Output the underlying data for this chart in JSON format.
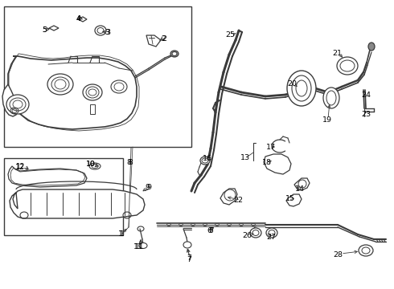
{
  "bg_color": "#ffffff",
  "line_color": "#3a3a3a",
  "fig_width": 4.9,
  "fig_height": 3.6,
  "dpi": 100,
  "box1": [
    5,
    8,
    238,
    8,
    238,
    183,
    5,
    183
  ],
  "box2": [
    5,
    197,
    153,
    197,
    153,
    293,
    5,
    293
  ],
  "labels": {
    "1": [
      148,
      292,
      "left"
    ],
    "2": [
      196,
      48,
      "left"
    ],
    "3": [
      132,
      40,
      "left"
    ],
    "4": [
      103,
      24,
      "left"
    ],
    "5": [
      62,
      38,
      "right"
    ],
    "6": [
      264,
      288,
      "right"
    ],
    "7": [
      237,
      322,
      "left"
    ],
    "8": [
      160,
      202,
      "left"
    ],
    "9": [
      182,
      234,
      "left"
    ],
    "10": [
      120,
      205,
      "left"
    ],
    "11": [
      173,
      308,
      "left"
    ],
    "12": [
      28,
      208,
      "right"
    ],
    "13": [
      308,
      196,
      "right"
    ],
    "14": [
      372,
      234,
      "left"
    ],
    "15": [
      363,
      244,
      "left"
    ],
    "16": [
      263,
      198,
      "right"
    ],
    "17": [
      337,
      185,
      "left"
    ],
    "18": [
      332,
      202,
      "left"
    ],
    "19": [
      407,
      148,
      "center"
    ],
    "20": [
      368,
      105,
      "right"
    ],
    "21": [
      421,
      66,
      "right"
    ],
    "22": [
      298,
      248,
      "right"
    ],
    "23": [
      452,
      142,
      "left"
    ],
    "24": [
      451,
      118,
      "left"
    ],
    "25": [
      290,
      44,
      "right"
    ],
    "26": [
      311,
      293,
      "right"
    ],
    "27": [
      334,
      295,
      "left"
    ],
    "28": [
      423,
      316,
      "right"
    ]
  }
}
